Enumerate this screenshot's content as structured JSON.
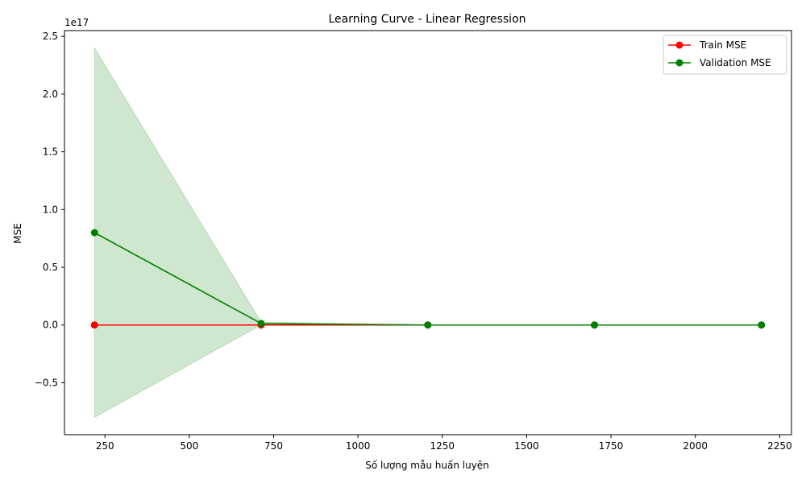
{
  "chart_data": {
    "type": "line",
    "title": "Learning Curve - Linear Regression",
    "xlabel": "Số lượng mẫu huấn luyện",
    "ylabel": "MSE",
    "y_offset_text": "1e17",
    "y_scale_exponent": 17,
    "xlim": [
      130,
      2285
    ],
    "ylim": [
      -0.95,
      2.55
    ],
    "x_ticks": [
      250,
      500,
      750,
      1000,
      1250,
      1500,
      1750,
      2000,
      2250
    ],
    "x_tick_labels": [
      "250",
      "500",
      "750",
      "1000",
      "1250",
      "1500",
      "1750",
      "2000",
      "2250"
    ],
    "y_ticks": [
      -0.5,
      0.0,
      0.5,
      1.0,
      1.5,
      2.0,
      2.5
    ],
    "y_tick_labels": [
      "−0.5",
      "0.0",
      "0.5",
      "1.0",
      "1.5",
      "2.0",
      "2.5"
    ],
    "grid": false,
    "legend_position": "top-right",
    "x": [
      219,
      713,
      1207,
      1701,
      2196
    ],
    "series": [
      {
        "name": "Train MSE",
        "color": "#ff0000",
        "values": [
          0.0,
          0.0,
          0.0,
          0.0,
          0.0
        ]
      },
      {
        "name": "Validation MSE",
        "color": "#008000",
        "values": [
          0.8,
          0.013,
          0.0,
          0.0,
          0.0
        ],
        "band_upper": [
          2.4,
          0.025,
          0.0,
          0.0,
          0.0
        ],
        "band_lower": [
          -0.8,
          0.001,
          0.0,
          0.0,
          0.0
        ],
        "band_color": "#008000"
      }
    ]
  }
}
